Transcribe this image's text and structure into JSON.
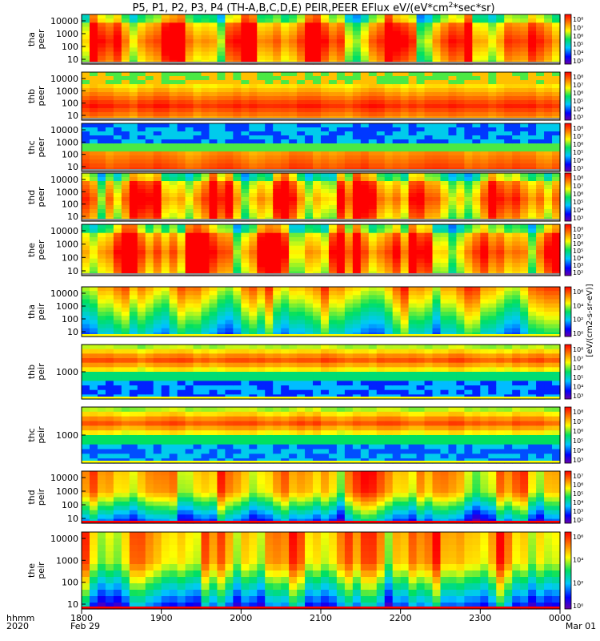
{
  "chart_data": {
    "type": "heatmap",
    "title": "P5, P1, P2, P3, P4 (TH-A,B,C,D,E) PEIR,PEER EFlux eV/(eV*cm²*sec*sr)",
    "title_parts": {
      "prefix": "P5, P1, P2, P3, P4 (TH-A,B,C,D,E) PEIR,PEER EFlux eV/(eV*cm",
      "sup": "2",
      "suffix": "*sec*sr)"
    },
    "x_axis": {
      "range_hhmm": [
        1800,
        2400
      ],
      "ticks": [
        "1800",
        "1900",
        "2000",
        "2100",
        "2200",
        "2300",
        "0000"
      ],
      "date_under_first": "Feb 29",
      "date_under_last": "Mar 01",
      "corner_label_top": "hhmm",
      "corner_label_bottom": "2020"
    },
    "colorbar_label": "[eV/(cm2-s-sr-eV)]",
    "panels": [
      {
        "name_top": "tha",
        "name_bottom": "peer",
        "yticks": [
          "10000",
          "1000",
          "100",
          "10"
        ],
        "cbar_ticks": [
          "10⁸",
          "10⁷",
          "10⁶",
          "10⁵",
          "10⁴",
          "10³"
        ],
        "baseline": "#8e8e8e"
      },
      {
        "name_top": "thb",
        "name_bottom": "peer",
        "yticks": [
          "10000",
          "1000",
          "100",
          "10"
        ],
        "cbar_ticks": [
          "10⁸",
          "10⁷",
          "10⁶",
          "10⁵",
          "10⁴",
          "10³"
        ],
        "baseline": "#8e8e8e"
      },
      {
        "name_top": "thc",
        "name_bottom": "peer",
        "yticks": [
          "10000",
          "1000",
          "100",
          "10"
        ],
        "cbar_ticks": [
          "10⁸",
          "10⁷",
          "10⁶",
          "10⁵",
          "10⁴",
          "10³"
        ],
        "baseline": "#8e8e8e"
      },
      {
        "name_top": "thd",
        "name_bottom": "peer",
        "yticks": [
          "10000",
          "1000",
          "100",
          "10"
        ],
        "cbar_ticks": [
          "10⁸",
          "10⁷",
          "10⁶",
          "10⁵",
          "10⁴",
          "10³"
        ],
        "baseline": "#8e8e8e"
      },
      {
        "name_top": "the",
        "name_bottom": "peer",
        "yticks": [
          "10000",
          "1000",
          "100",
          "10"
        ],
        "cbar_ticks": [
          "10⁸",
          "10⁷",
          "10⁶",
          "10⁵",
          "10⁴",
          "10³",
          "10²"
        ],
        "baseline": "#8e8e8e"
      },
      {
        "name_top": "tha",
        "name_bottom": "peir",
        "yticks": [
          "10000",
          "1000",
          "100",
          "10"
        ],
        "cbar_ticks": [
          "10⁶",
          "10⁴",
          "10²",
          "10⁰"
        ],
        "baseline": "#ffff00"
      },
      {
        "name_top": "thb",
        "name_bottom": "peir",
        "yticks": [
          "1000"
        ],
        "cbar_ticks": [
          "10⁸",
          "10⁷",
          "10⁶",
          "10⁵",
          "10⁴",
          "10³"
        ],
        "baseline": "#ffff00"
      },
      {
        "name_top": "thc",
        "name_bottom": "peir",
        "yticks": [
          "1000"
        ],
        "cbar_ticks": [
          "10⁸",
          "10⁷",
          "10⁶",
          "10⁵",
          "10⁴",
          "10³"
        ],
        "baseline": "#ffff00"
      },
      {
        "name_top": "thd",
        "name_bottom": "peir",
        "yticks": [
          "10000",
          "1000",
          "100",
          "10"
        ],
        "cbar_ticks": [
          "10⁷",
          "10⁶",
          "10⁵",
          "10⁴",
          "10³",
          "10²"
        ],
        "baseline": "#ff0000"
      },
      {
        "name_top": "the",
        "name_bottom": "peir",
        "yticks": [
          "10000",
          "1000",
          "100",
          "10"
        ],
        "cbar_ticks": [
          "10⁶",
          "10⁴",
          "10²",
          "10⁰"
        ],
        "baseline": "#ff0000"
      }
    ]
  }
}
